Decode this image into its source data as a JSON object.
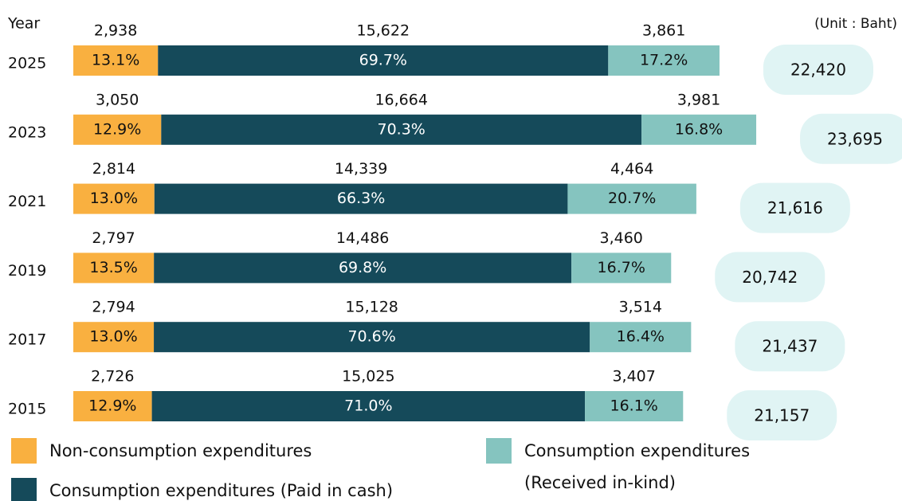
{
  "chart_data": {
    "type": "stacked-bar-horizontal",
    "year_label": "Year",
    "unit_label": "(Unit : Baht)",
    "categories": [
      "2025",
      "2023",
      "2021",
      "2019",
      "2017",
      "2015"
    ],
    "series": [
      {
        "name": "Non-consumption expenditures",
        "color": "#f9b040",
        "values": [
          2938,
          3050,
          2814,
          2797,
          2794,
          2726
        ],
        "value_labels": [
          "2,938",
          "3,050",
          "2,814",
          "2,797",
          "2,794",
          "2,726"
        ],
        "percent_labels": [
          "13.1%",
          "12.9%",
          "13.0%",
          "13.5%",
          "13.0%",
          "12.9%"
        ]
      },
      {
        "name": "Consumption expenditures (Paid in cash)",
        "color": "#154a5a",
        "values": [
          15622,
          16664,
          14339,
          14486,
          15128,
          15025
        ],
        "value_labels": [
          "15,622",
          "16,664",
          "14,339",
          "14,486",
          "15,128",
          "15,025"
        ],
        "percent_labels": [
          "69.7%",
          "70.3%",
          "66.3%",
          "69.8%",
          "70.6%",
          "71.0%"
        ]
      },
      {
        "name": "Consumption expenditures (Received in-kind)",
        "color": "#85c4bf",
        "values": [
          3861,
          3981,
          4464,
          3460,
          3514,
          3407
        ],
        "value_labels": [
          "3,861",
          "3,981",
          "4,464",
          "3,460",
          "3,514",
          "3,407"
        ],
        "percent_labels": [
          "17.2%",
          "16.8%",
          "20.7%",
          "16.7%",
          "16.4%",
          "16.1%"
        ]
      }
    ],
    "totals": [
      22420,
      23695,
      21616,
      20742,
      21437,
      21157
    ],
    "total_labels": [
      "22,420",
      "23,695",
      "21,616",
      "20,742",
      "21,437",
      "21,157"
    ],
    "total_color": "#e0f4f4"
  }
}
